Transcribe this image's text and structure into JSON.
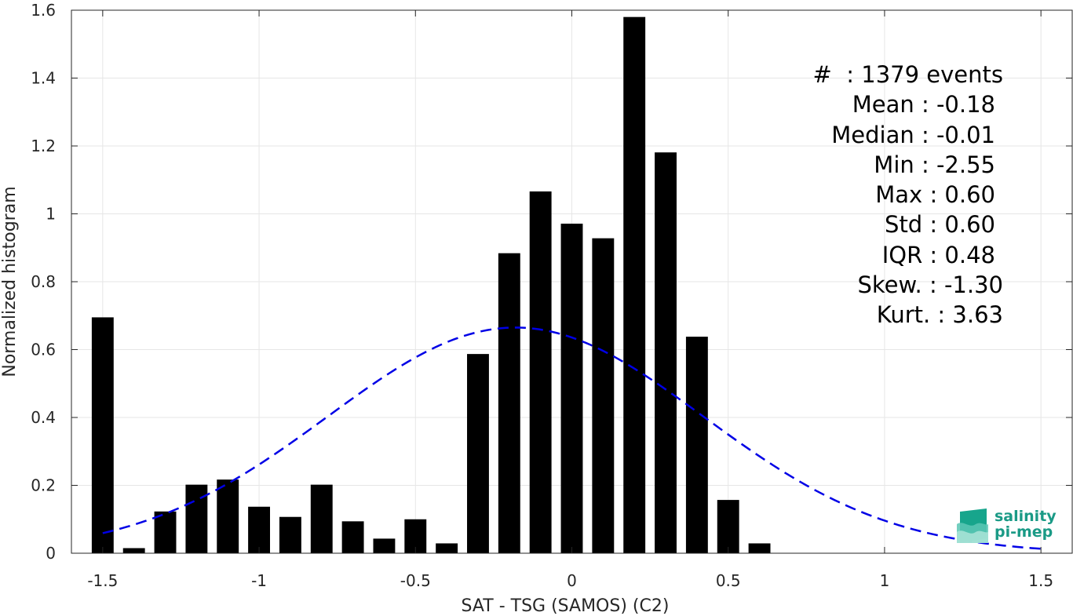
{
  "chart_data": {
    "type": "bar",
    "xlabel": "SAT - TSG (SAMOS) (C2)",
    "ylabel": "Normalized histogram",
    "xlim": [
      -1.6,
      1.6
    ],
    "ylim": [
      0,
      1.6
    ],
    "xticks": [
      -1.5,
      -1,
      -0.5,
      0,
      0.5,
      1,
      1.5
    ],
    "xtick_labels": [
      "-1.5",
      "-1",
      "-0.5",
      "0",
      "0.5",
      "1",
      "1.5"
    ],
    "yticks": [
      0,
      0.2,
      0.4,
      0.6,
      0.8,
      1,
      1.2,
      1.4,
      1.6
    ],
    "ytick_labels": [
      "0",
      "0.2",
      "0.4",
      "0.6",
      "0.8",
      "1",
      "1.2",
      "1.4",
      "1.6"
    ],
    "grid": true,
    "bin_centers": [
      -1.5,
      -1.4,
      -1.3,
      -1.2,
      -1.1,
      -1.0,
      -0.9,
      -0.8,
      -0.7,
      -0.6,
      -0.5,
      -0.4,
      -0.3,
      -0.2,
      -0.1,
      0.0,
      0.1,
      0.2,
      0.3,
      0.4,
      0.5,
      0.6
    ],
    "values": [
      0.695,
      0.015,
      0.123,
      0.202,
      0.217,
      0.137,
      0.107,
      0.202,
      0.094,
      0.043,
      0.1,
      0.029,
      0.587,
      0.884,
      1.066,
      0.971,
      0.928,
      1.58,
      1.181,
      0.638,
      0.157,
      0.029
    ],
    "bar_color": "#000000",
    "fit_curve": {
      "type": "gaussian",
      "mean": -0.18,
      "std": 0.6,
      "x_range": [
        -1.5,
        1.5
      ],
      "color": "#0000e6",
      "style": "dashed"
    }
  },
  "stats": [
    "#  : 1379 events",
    "Mean : -0.18",
    "Median : -0.01",
    "Min : -2.55",
    "Max : 0.60",
    "Std : 0.60",
    "IQR : 0.48",
    "Skew. : -1.30",
    "Kurt. : 3.63"
  ],
  "logo": {
    "line1": "salinity",
    "line2": "pi-mep",
    "color": "#1a9a86"
  }
}
